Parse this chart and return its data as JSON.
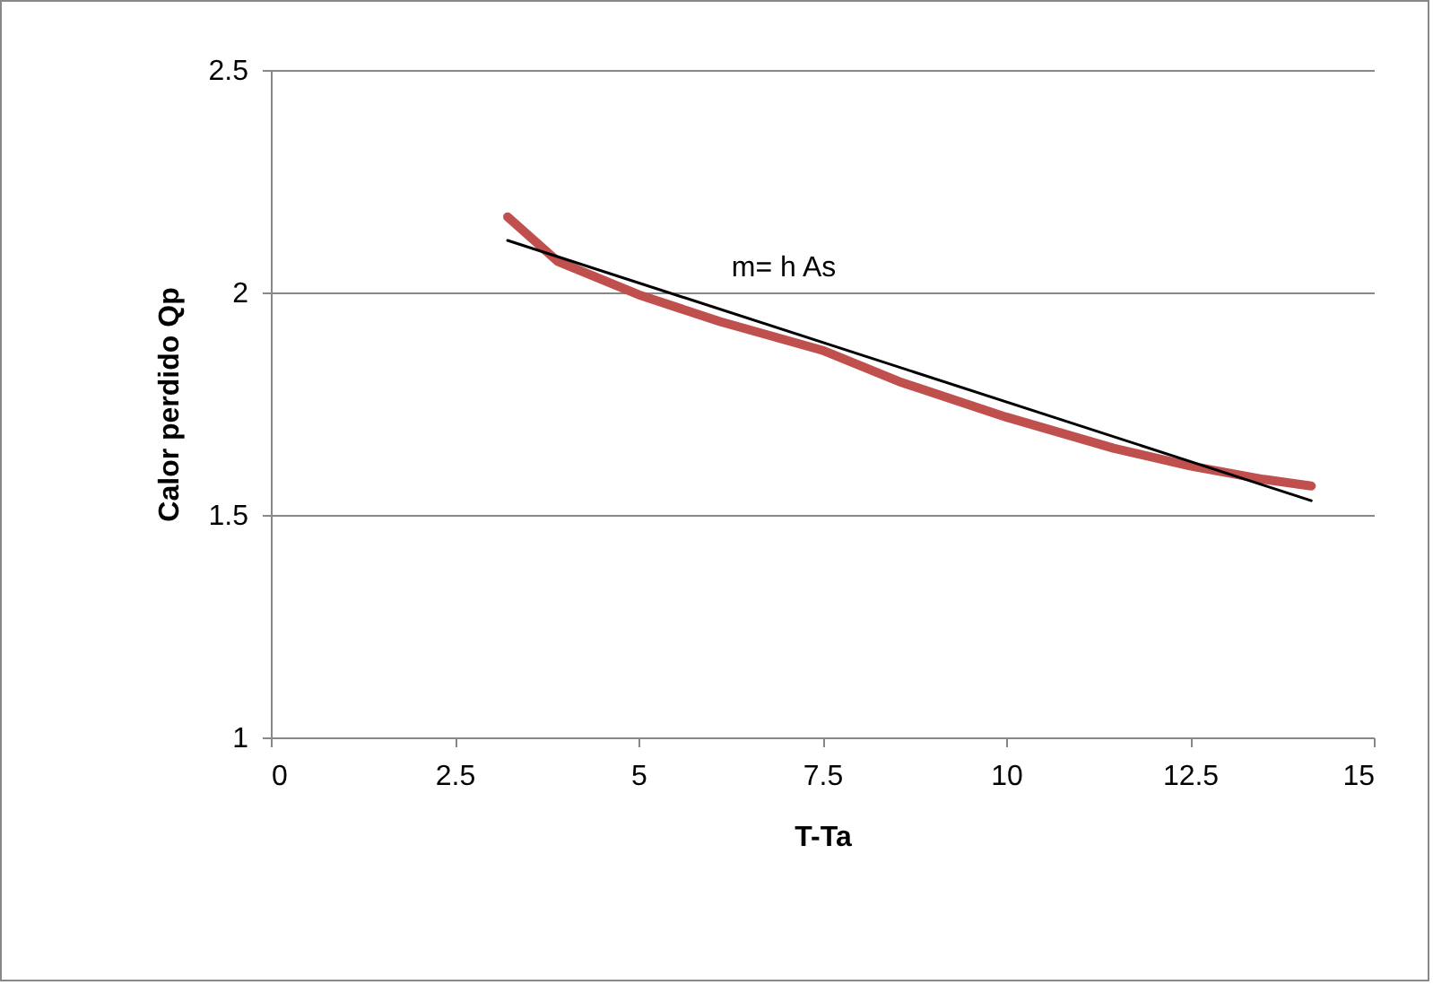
{
  "chart_data": {
    "type": "line",
    "xlabel": "T-Ta",
    "ylabel": "Calor perdido Qp",
    "xlim": [
      0,
      15
    ],
    "xticks": [
      0,
      2.5,
      5,
      7.5,
      10,
      12.5,
      15
    ],
    "ylim": [
      1,
      2.5
    ],
    "yticks": [
      1,
      1.5,
      2,
      2.5
    ],
    "grid": "y",
    "legend": false,
    "marker": "none",
    "line_style": "solid",
    "annotations": [
      "m= h As"
    ],
    "series": [
      {
        "color": "#c0504d",
        "x": [
          3.22,
          3.9,
          5,
          6.1,
          7.5,
          8.54,
          10,
          11.46,
          12.5,
          13.5,
          14.15
        ],
        "values": [
          2.17,
          2.07,
          1.995,
          1.935,
          1.87,
          1.8,
          1.72,
          1.65,
          1.61,
          1.58,
          1.565
        ]
      },
      {
        "color": "#000000",
        "x": [
          3.22,
          14.15
        ],
        "values": [
          2.117,
          1.532
        ]
      }
    ]
  }
}
